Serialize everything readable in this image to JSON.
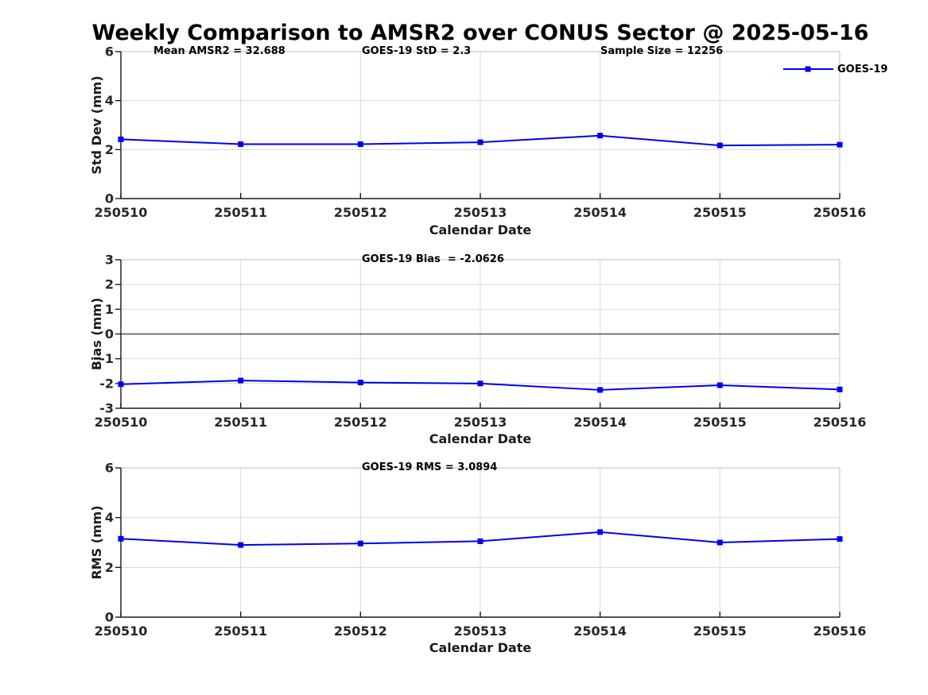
{
  "title": "Weekly Comparison to AMSR2 over CONUS Sector @ 2025-05-16",
  "legend": {
    "label": "GOES-19",
    "position": "top-right"
  },
  "colors": {
    "line": "#0000EE",
    "grid": "#D9D9D9",
    "axis": "#1A1A1A",
    "box": "#CCCCCC",
    "tick_label": "#262626",
    "zero_line": "#4D4D4D",
    "background": "#FFFFFF"
  },
  "chart_data": [
    {
      "type": "line",
      "panel": "std-dev",
      "ylabel": "Std Dev (mm)",
      "xlabel": "Calendar Date",
      "categories": [
        "250510",
        "250511",
        "250512",
        "250513",
        "250514",
        "250515",
        "250516"
      ],
      "series": [
        {
          "name": "GOES-19",
          "marker": "square",
          "values": [
            2.42,
            2.22,
            2.22,
            2.3,
            2.57,
            2.17,
            2.2
          ]
        }
      ],
      "ylim": [
        0,
        6
      ],
      "yticks": [
        0,
        2,
        4,
        6
      ],
      "grid": true,
      "annotations": [
        "Mean AMSR2 = 32.688",
        "GOES-19 StD = 2.3",
        "Sample Size = 12256"
      ]
    },
    {
      "type": "line",
      "panel": "bias",
      "ylabel": "Bias (mm)",
      "xlabel": "Calendar Date",
      "categories": [
        "250510",
        "250511",
        "250512",
        "250513",
        "250514",
        "250515",
        "250516"
      ],
      "series": [
        {
          "name": "GOES-19",
          "marker": "square",
          "values": [
            -2.03,
            -1.88,
            -1.96,
            -2.0,
            -2.26,
            -2.07,
            -2.24
          ]
        }
      ],
      "ylim": [
        -3,
        3
      ],
      "yticks": [
        -3,
        -2,
        -1,
        0,
        1,
        2,
        3
      ],
      "zero_line": true,
      "grid": true,
      "annotations": [
        "GOES-19 Bias  = -2.0626"
      ]
    },
    {
      "type": "line",
      "panel": "rms",
      "ylabel": "RMS (mm)",
      "xlabel": "Calendar Date",
      "categories": [
        "250510",
        "250511",
        "250512",
        "250513",
        "250514",
        "250515",
        "250516"
      ],
      "series": [
        {
          "name": "GOES-19",
          "marker": "square",
          "values": [
            3.15,
            2.9,
            2.96,
            3.05,
            3.42,
            3.0,
            3.14
          ]
        }
      ],
      "ylim": [
        0,
        6
      ],
      "yticks": [
        0,
        2,
        4,
        6
      ],
      "grid": true,
      "annotations": [
        "GOES-19 RMS = 3.0894"
      ]
    }
  ]
}
